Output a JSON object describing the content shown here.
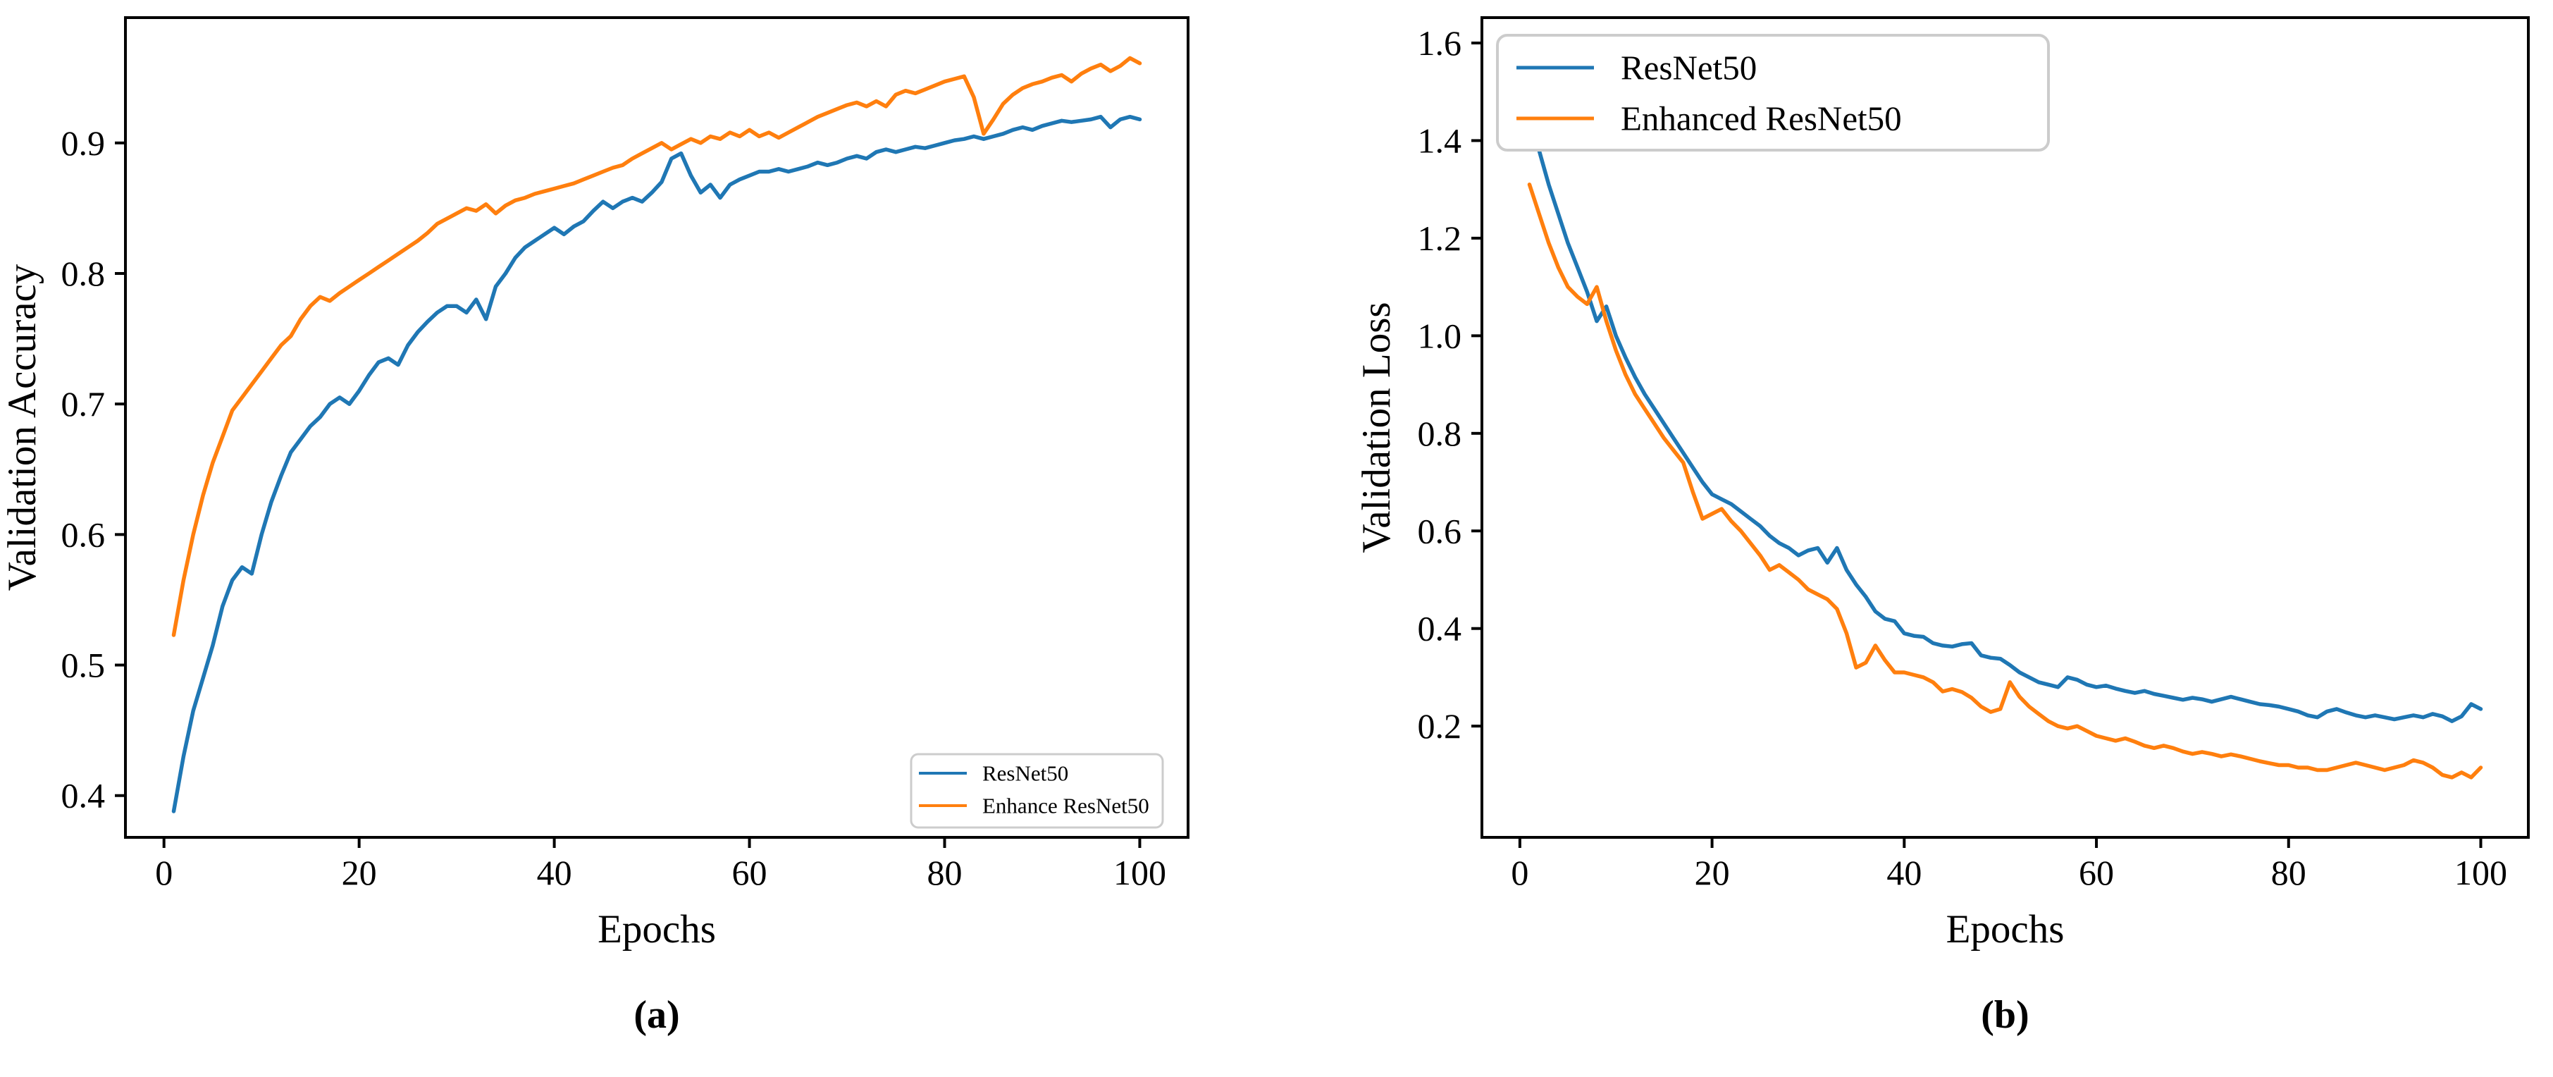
{
  "figure": {
    "background": "#ffffff",
    "text_color": "#000000",
    "spine_color": "#000000",
    "legend_edge_color": "#cccccc",
    "legend_face_color": "#ffffff"
  },
  "chart_data": [
    {
      "type": "line",
      "title": "",
      "caption": "(a)",
      "xlabel": "Epochs",
      "ylabel": "Validation Accuracy",
      "x": {
        "start": 1,
        "end": 100,
        "step": 1
      },
      "xlim": [
        -3.95,
        104.95
      ],
      "ylim": [
        0.368,
        0.996
      ],
      "xticks": [
        0,
        20,
        40,
        60,
        80,
        100
      ],
      "yticks": [
        0.4,
        0.5,
        0.6,
        0.7,
        0.8,
        0.9
      ],
      "grid": false,
      "legend_position": "lower right",
      "series": [
        {
          "name": "ResNet50",
          "color": "#1f77b4",
          "values": [
            0.388,
            0.43,
            0.465,
            0.49,
            0.515,
            0.545,
            0.565,
            0.575,
            0.57,
            0.6,
            0.625,
            0.645,
            0.663,
            0.673,
            0.683,
            0.69,
            0.7,
            0.705,
            0.7,
            0.71,
            0.722,
            0.732,
            0.735,
            0.73,
            0.745,
            0.755,
            0.763,
            0.77,
            0.775,
            0.775,
            0.77,
            0.78,
            0.765,
            0.79,
            0.8,
            0.812,
            0.82,
            0.825,
            0.83,
            0.835,
            0.83,
            0.836,
            0.84,
            0.848,
            0.855,
            0.85,
            0.855,
            0.858,
            0.855,
            0.862,
            0.87,
            0.888,
            0.892,
            0.875,
            0.862,
            0.868,
            0.858,
            0.868,
            0.872,
            0.875,
            0.878,
            0.878,
            0.88,
            0.878,
            0.88,
            0.882,
            0.885,
            0.883,
            0.885,
            0.888,
            0.89,
            0.888,
            0.893,
            0.895,
            0.893,
            0.895,
            0.897,
            0.896,
            0.898,
            0.9,
            0.902,
            0.903,
            0.905,
            0.903,
            0.905,
            0.907,
            0.91,
            0.912,
            0.91,
            0.913,
            0.915,
            0.917,
            0.916,
            0.917,
            0.918,
            0.92,
            0.912,
            0.918,
            0.92,
            0.918
          ]
        },
        {
          "name": "Enhance ResNet50",
          "color": "#ff7f0e",
          "values": [
            0.523,
            0.565,
            0.6,
            0.63,
            0.655,
            0.675,
            0.695,
            0.705,
            0.715,
            0.725,
            0.735,
            0.745,
            0.752,
            0.765,
            0.775,
            0.782,
            0.779,
            0.785,
            0.79,
            0.795,
            0.8,
            0.805,
            0.81,
            0.815,
            0.82,
            0.825,
            0.831,
            0.838,
            0.842,
            0.846,
            0.85,
            0.848,
            0.853,
            0.846,
            0.852,
            0.856,
            0.858,
            0.861,
            0.863,
            0.865,
            0.867,
            0.869,
            0.872,
            0.875,
            0.878,
            0.881,
            0.883,
            0.888,
            0.892,
            0.896,
            0.9,
            0.895,
            0.899,
            0.903,
            0.9,
            0.905,
            0.903,
            0.908,
            0.905,
            0.91,
            0.905,
            0.908,
            0.904,
            0.908,
            0.912,
            0.916,
            0.92,
            0.923,
            0.926,
            0.929,
            0.931,
            0.928,
            0.932,
            0.928,
            0.937,
            0.94,
            0.938,
            0.941,
            0.944,
            0.947,
            0.949,
            0.951,
            0.935,
            0.907,
            0.918,
            0.93,
            0.937,
            0.942,
            0.945,
            0.947,
            0.95,
            0.952,
            0.947,
            0.953,
            0.957,
            0.96,
            0.955,
            0.959,
            0.965,
            0.961
          ]
        }
      ]
    },
    {
      "type": "line",
      "title": "",
      "caption": "(b)",
      "xlabel": "Epochs",
      "ylabel": "Validation Loss",
      "x": {
        "start": 1,
        "end": 100,
        "step": 1
      },
      "xlim": [
        -3.95,
        104.95
      ],
      "ylim": [
        -0.028,
        1.652
      ],
      "xticks": [
        0,
        20,
        40,
        60,
        80,
        100
      ],
      "yticks": [
        0.2,
        0.4,
        0.6,
        0.8,
        1.0,
        1.2,
        1.4,
        1.6
      ],
      "grid": false,
      "legend_position": "upper left",
      "series": [
        {
          "name": "ResNet50",
          "color": "#1f77b4",
          "values": [
            1.45,
            1.38,
            1.31,
            1.25,
            1.19,
            1.14,
            1.09,
            1.03,
            1.06,
            1.0,
            0.955,
            0.915,
            0.88,
            0.85,
            0.82,
            0.79,
            0.76,
            0.73,
            0.7,
            0.675,
            0.665,
            0.655,
            0.64,
            0.625,
            0.61,
            0.59,
            0.575,
            0.565,
            0.55,
            0.56,
            0.565,
            0.535,
            0.565,
            0.52,
            0.49,
            0.465,
            0.435,
            0.42,
            0.415,
            0.39,
            0.385,
            0.383,
            0.37,
            0.365,
            0.363,
            0.368,
            0.37,
            0.345,
            0.34,
            0.338,
            0.325,
            0.31,
            0.3,
            0.29,
            0.285,
            0.28,
            0.3,
            0.295,
            0.285,
            0.28,
            0.283,
            0.277,
            0.272,
            0.268,
            0.272,
            0.266,
            0.262,
            0.258,
            0.254,
            0.258,
            0.255,
            0.25,
            0.255,
            0.26,
            0.255,
            0.25,
            0.245,
            0.243,
            0.24,
            0.235,
            0.23,
            0.222,
            0.218,
            0.23,
            0.235,
            0.228,
            0.222,
            0.218,
            0.222,
            0.218,
            0.214,
            0.218,
            0.222,
            0.218,
            0.225,
            0.22,
            0.21,
            0.22,
            0.245,
            0.235
          ]
        },
        {
          "name": "Enhanced ResNet50",
          "color": "#ff7f0e",
          "values": [
            1.31,
            1.25,
            1.19,
            1.14,
            1.1,
            1.08,
            1.065,
            1.1,
            1.03,
            0.97,
            0.92,
            0.88,
            0.85,
            0.82,
            0.79,
            0.765,
            0.74,
            0.68,
            0.625,
            0.635,
            0.645,
            0.62,
            0.6,
            0.575,
            0.55,
            0.52,
            0.53,
            0.515,
            0.5,
            0.48,
            0.47,
            0.46,
            0.44,
            0.39,
            0.32,
            0.33,
            0.365,
            0.335,
            0.31,
            0.31,
            0.305,
            0.3,
            0.29,
            0.271,
            0.276,
            0.27,
            0.258,
            0.24,
            0.229,
            0.235,
            0.29,
            0.26,
            0.24,
            0.225,
            0.21,
            0.2,
            0.195,
            0.2,
            0.19,
            0.18,
            0.175,
            0.17,
            0.175,
            0.168,
            0.16,
            0.155,
            0.16,
            0.155,
            0.148,
            0.143,
            0.147,
            0.143,
            0.138,
            0.142,
            0.138,
            0.133,
            0.128,
            0.124,
            0.12,
            0.12,
            0.115,
            0.115,
            0.11,
            0.11,
            0.115,
            0.12,
            0.125,
            0.12,
            0.115,
            0.11,
            0.115,
            0.12,
            0.13,
            0.125,
            0.115,
            0.1,
            0.095,
            0.105,
            0.095,
            0.115
          ]
        }
      ]
    }
  ]
}
